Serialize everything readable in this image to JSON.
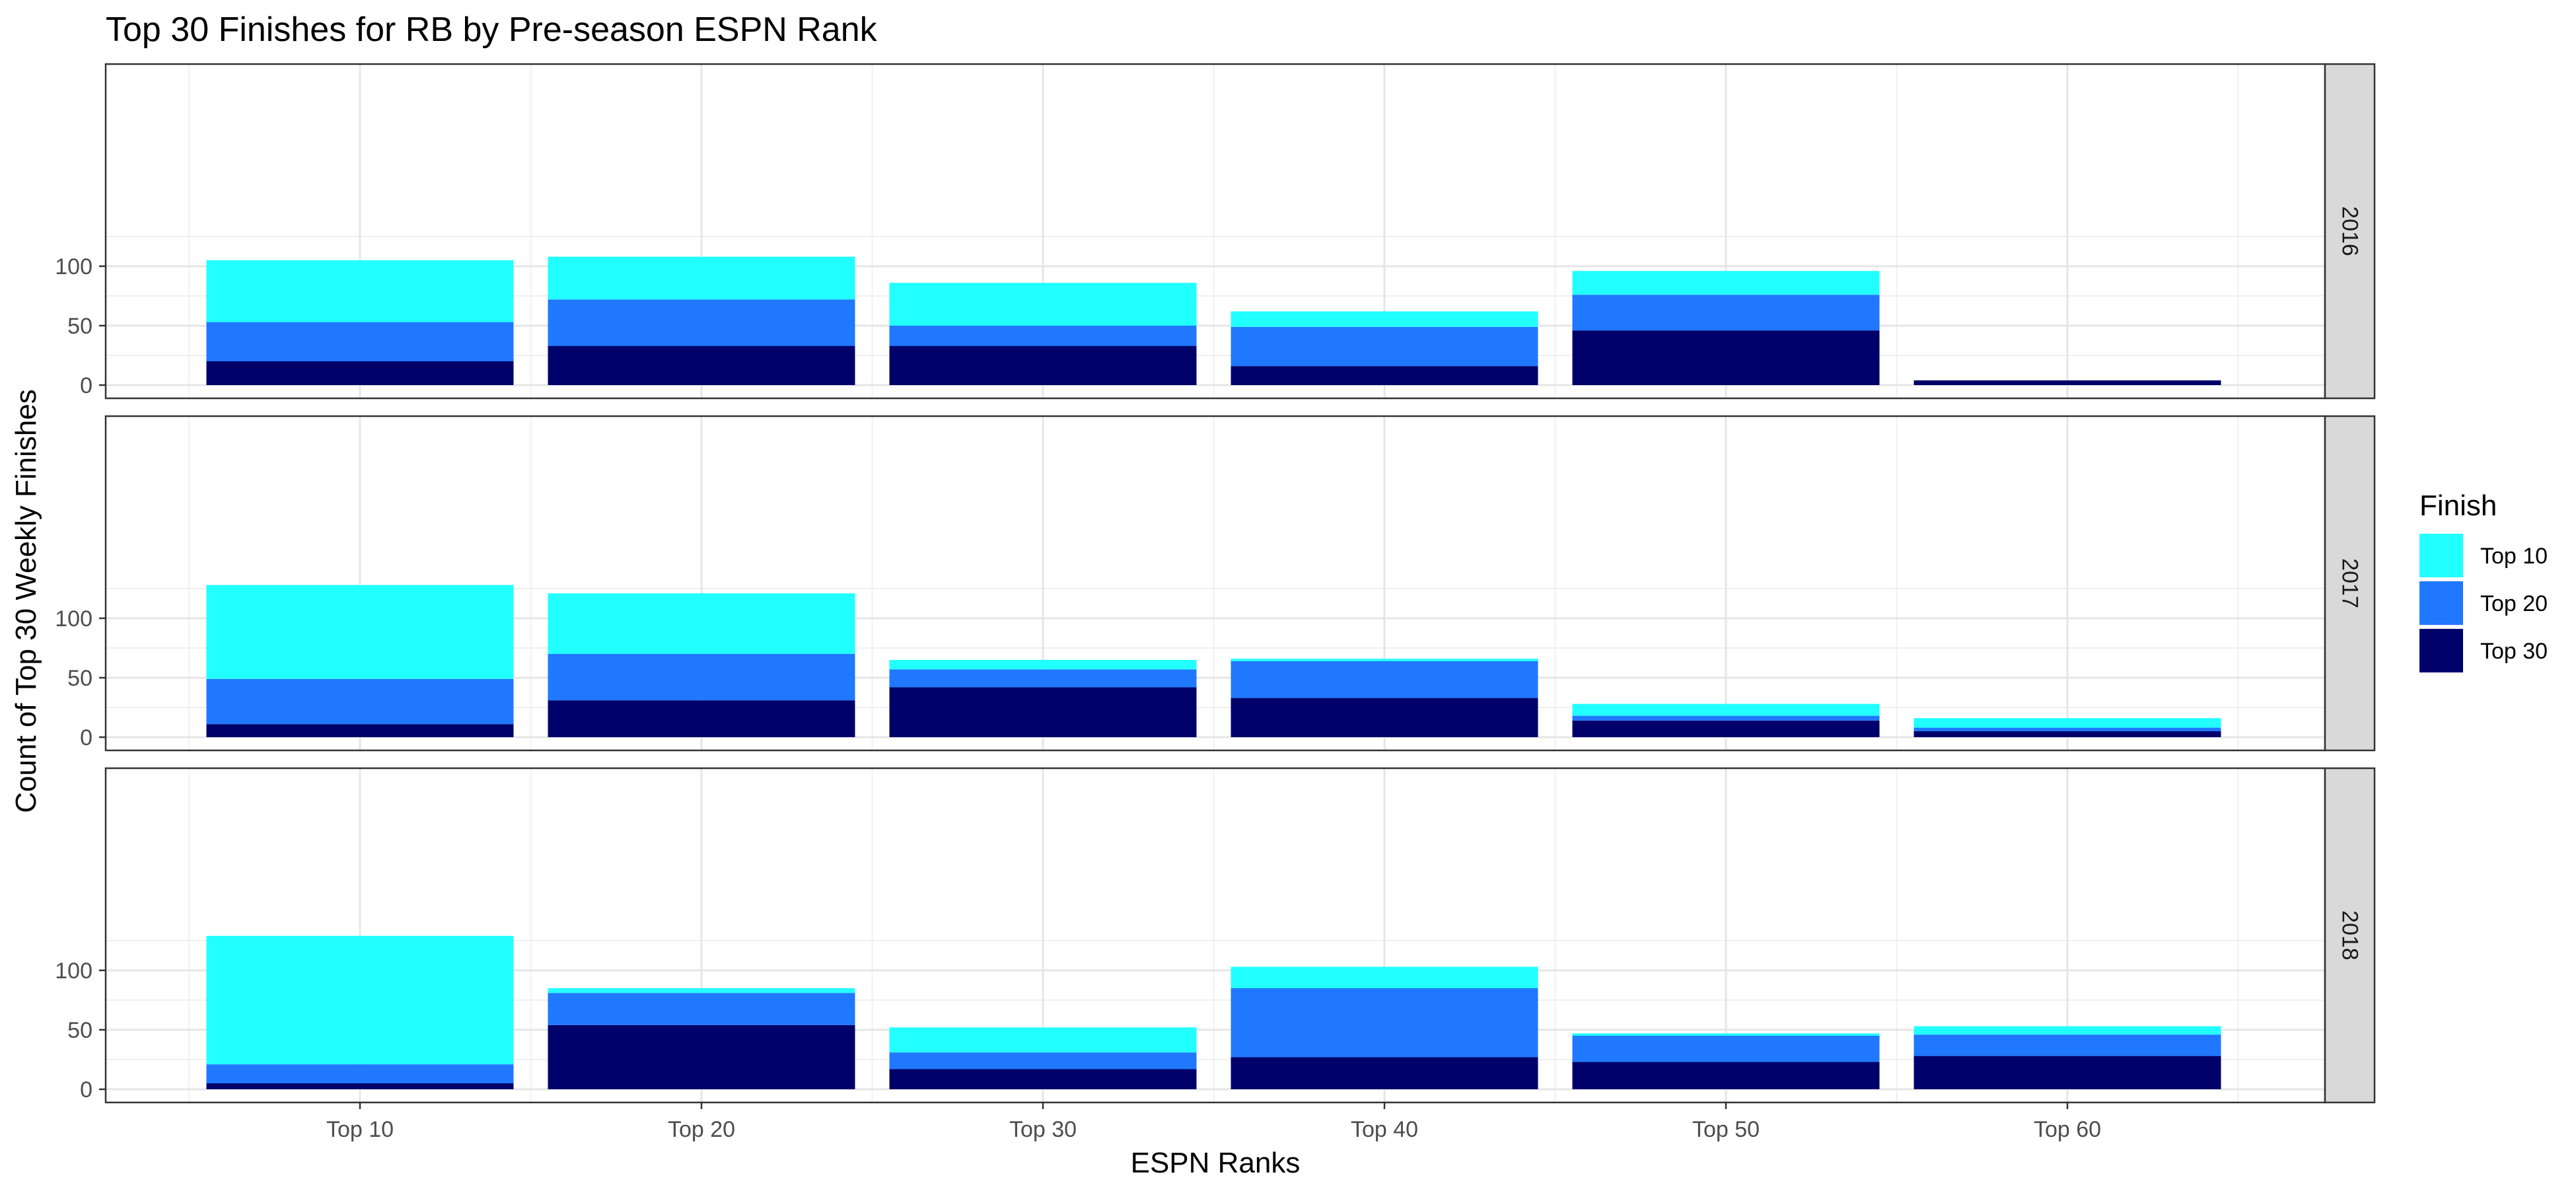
{
  "chart_data": {
    "type": "bar",
    "stacked": true,
    "title": "Top 30 Finishes for RB by Pre-season ESPN Rank",
    "xlabel": "ESPN Ranks",
    "ylabel": "Count of Top 30 Weekly Finishes",
    "categories": [
      "Top 10",
      "Top 20",
      "Top 30",
      "Top 40",
      "Top 50",
      "Top 60"
    ],
    "ylim": [
      0,
      135
    ],
    "yticks": [
      0,
      50,
      100
    ],
    "grid": true,
    "legend": {
      "title": "Finish",
      "position": "right",
      "entries": [
        "Top 10",
        "Top 20",
        "Top 30"
      ]
    },
    "colors": {
      "Top 10": "#22FFFF",
      "Top 20": "#1F78FF",
      "Top 30": "#00006A"
    },
    "facets": [
      {
        "label": "2016",
        "series": [
          {
            "name": "Top 30",
            "values": [
              20,
              33,
              33,
              16,
              46,
              4
            ]
          },
          {
            "name": "Top 20",
            "values": [
              33,
              39,
              17,
              33,
              30,
              0
            ]
          },
          {
            "name": "Top 10",
            "values": [
              52,
              36,
              36,
              13,
              20,
              0
            ]
          }
        ]
      },
      {
        "label": "2017",
        "series": [
          {
            "name": "Top 30",
            "values": [
              11,
              31,
              42,
              33,
              14,
              5
            ]
          },
          {
            "name": "Top 20",
            "values": [
              38,
              39,
              15,
              31,
              4,
              3
            ]
          },
          {
            "name": "Top 10",
            "values": [
              79,
              51,
              8,
              2,
              10,
              8
            ]
          }
        ]
      },
      {
        "label": "2018",
        "series": [
          {
            "name": "Top 30",
            "values": [
              5,
              54,
              17,
              27,
              23,
              28
            ]
          },
          {
            "name": "Top 20",
            "values": [
              16,
              27,
              14,
              58,
              22,
              18
            ]
          },
          {
            "name": "Top 10",
            "values": [
              108,
              4,
              21,
              18,
              2,
              7
            ]
          }
        ]
      }
    ]
  }
}
